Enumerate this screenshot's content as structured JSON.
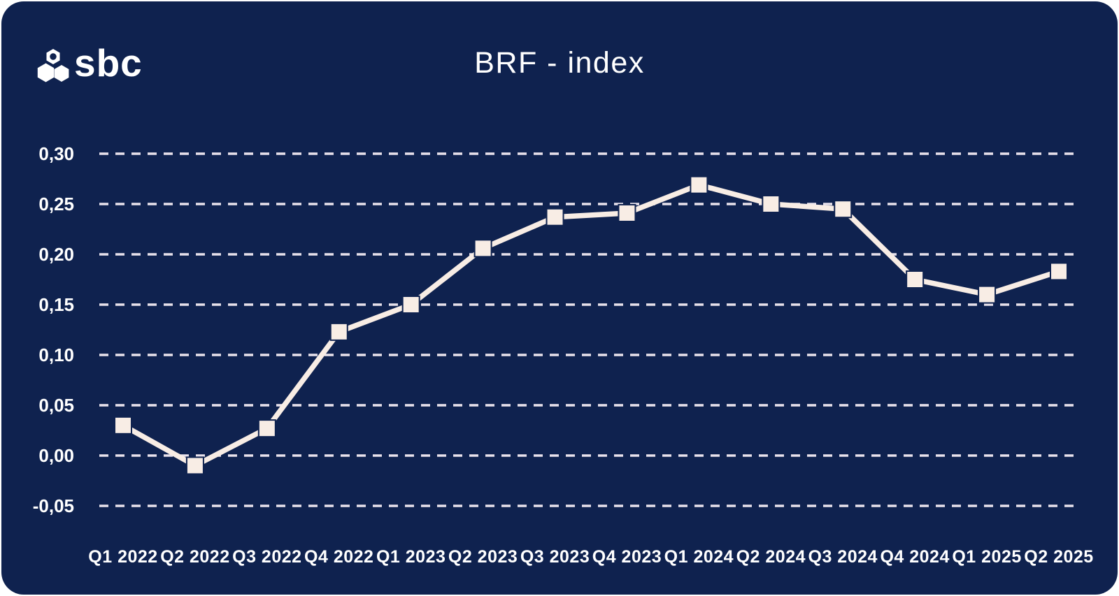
{
  "brand": {
    "logo_text": "sbc",
    "logo_icon": "hexagon-cluster-icon"
  },
  "header": {
    "title": "BRF - index"
  },
  "colors": {
    "background_navy": "#0F224F",
    "line_cream": "#F8EDE5",
    "grid_dash": "#E8E2EC",
    "text_white": "#FFFFFF",
    "page_border_white": "#FFFFFF"
  },
  "chart_data": {
    "type": "line",
    "title": "BRF - index",
    "categories": [
      "Q1 2022",
      "Q2 2022",
      "Q3 2022",
      "Q4 2022",
      "Q1 2023",
      "Q2 2023",
      "Q3 2023",
      "Q4 2023",
      "Q1 2024",
      "Q2 2024",
      "Q3 2024",
      "Q4 2024",
      "Q1 2025",
      "Q2 2025"
    ],
    "series": [
      {
        "name": "BRF-index",
        "values": [
          0.03,
          -0.01,
          0.027,
          0.123,
          0.15,
          0.206,
          0.237,
          0.241,
          0.269,
          0.25,
          0.245,
          0.175,
          0.16,
          0.183
        ]
      }
    ],
    "xlabel": "",
    "ylabel": "",
    "ylim": [
      -0.05,
      0.3
    ],
    "yticks": [
      0.3,
      0.25,
      0.2,
      0.15,
      0.1,
      0.05,
      0.0,
      -0.05
    ],
    "ytick_labels": [
      "0,30",
      "0,25",
      "0,20",
      "0,15",
      "0,10",
      "0,05",
      "0,00",
      "-0,05"
    ],
    "decimal_separator": ",",
    "grid": "horizontal-dashed",
    "legend_position": "none",
    "marker": "square"
  }
}
